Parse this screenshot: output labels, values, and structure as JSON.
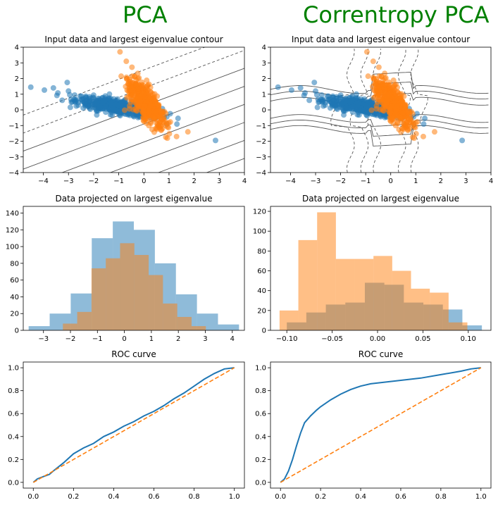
{
  "figure": {
    "column_titles": [
      "PCA",
      "Correntropy PCA"
    ]
  },
  "colors": {
    "blue": "#1f77b4",
    "orange": "#ff7f0e",
    "hist_blue": "#1f77b4",
    "hist_orange": "#ff7f0e",
    "title_green": "#008000",
    "contour": "#555555"
  },
  "chart_data": [
    {
      "panel": "pca-scatter",
      "type": "scatter",
      "title": "Input data and largest eigenvalue contour",
      "xlim": [
        -4.8,
        4
      ],
      "ylim": [
        -4,
        4
      ],
      "xticks": [
        -4,
        -3,
        -2,
        -1,
        0,
        1,
        2,
        3,
        4
      ],
      "yticks": [
        -4,
        -3,
        -2,
        -1,
        0,
        1,
        2,
        3,
        4
      ],
      "series": [
        {
          "color": "blue",
          "description": "elongated cluster along x",
          "center": [
            -1.0,
            0.2
          ],
          "outliers": [
            [
              -4.5,
              1.45
            ],
            [
              -3.6,
              1.4
            ],
            [
              -3.05,
              1.75
            ],
            [
              2.85,
              -1.95
            ]
          ]
        },
        {
          "color": "orange",
          "description": "elongated cluster along y",
          "center": [
            0.1,
            0.4
          ],
          "outliers": [
            [
              -0.95,
              3.7
            ],
            [
              1.75,
              -1.4
            ],
            [
              1.3,
              -1.7
            ]
          ]
        }
      ],
      "contour_style": "parallel lines, slope ~0.6"
    },
    {
      "panel": "cpca-scatter",
      "type": "scatter",
      "title": "Input data and largest eigenvalue contour",
      "xlim": [
        -4.8,
        4
      ],
      "ylim": [
        -4,
        4
      ],
      "xticks": [
        -4,
        -3,
        -2,
        -1,
        0,
        1,
        2,
        3,
        4
      ],
      "yticks": [
        -4,
        -3,
        -2,
        -1,
        0,
        1,
        2,
        3,
        4
      ],
      "contour_style": "curved level sets around the data"
    },
    {
      "panel": "pca-hist",
      "type": "bar",
      "title": "Data projected on largest eigenvalue",
      "xlim": [
        -3.75,
        4.45
      ],
      "ylim": [
        0,
        148
      ],
      "xticks": [
        -3,
        -2,
        -1,
        0,
        1,
        2,
        3,
        4
      ],
      "yticks": [
        0,
        20,
        40,
        60,
        80,
        100,
        120,
        140
      ],
      "series": [
        {
          "color": "blue",
          "edges": [
            -3.55,
            -2.77,
            -1.99,
            -1.21,
            -0.43,
            0.35,
            1.13,
            1.91,
            2.69,
            3.47,
            4.25
          ],
          "values": [
            5,
            20,
            44,
            110,
            130,
            120,
            80,
            43,
            20,
            7
          ]
        },
        {
          "color": "orange",
          "edges": [
            -2.28,
            -1.75,
            -1.22,
            -0.69,
            -0.16,
            0.37,
            0.9,
            1.43,
            1.96,
            2.49,
            3.02
          ],
          "values": [
            8,
            22,
            74,
            86,
            104,
            90,
            66,
            32,
            16,
            5
          ]
        }
      ]
    },
    {
      "panel": "cpca-hist",
      "type": "bar",
      "title": "Data projected on largest eigenvalue",
      "xlim": [
        -0.118,
        0.125
      ],
      "ylim": [
        0,
        125
      ],
      "xticks": [
        -0.1,
        -0.05,
        0.0,
        0.05,
        0.1
      ],
      "xtick_labels": [
        "−0.10",
        "−0.05",
        "0.00",
        "0.05",
        "0.10"
      ],
      "yticks": [
        0,
        20,
        40,
        60,
        80,
        100,
        120
      ],
      "series": [
        {
          "color": "blue",
          "edges": [
            -0.1,
            -0.0785,
            -0.057,
            -0.0355,
            -0.014,
            0.0075,
            0.029,
            0.0505,
            0.072,
            0.0935,
            0.115
          ],
          "values": [
            8,
            18,
            26,
            28,
            48,
            46,
            28,
            26,
            21,
            5
          ]
        },
        {
          "color": "orange",
          "edges": [
            -0.108,
            -0.0873,
            -0.0666,
            -0.0459,
            -0.0252,
            -0.0045,
            0.0162,
            0.0369,
            0.0576,
            0.0783,
            0.099
          ],
          "values": [
            20,
            91,
            119,
            72,
            72,
            75,
            60,
            42,
            38,
            8
          ]
        }
      ]
    },
    {
      "panel": "pca-roc",
      "type": "line",
      "title": "ROC curve",
      "xlim": [
        -0.05,
        1.05
      ],
      "ylim": [
        -0.05,
        1.05
      ],
      "xticks": [
        0.0,
        0.2,
        0.4,
        0.6,
        0.8,
        1.0
      ],
      "yticks": [
        0.0,
        0.2,
        0.4,
        0.6,
        0.8,
        1.0
      ],
      "series": [
        {
          "color": "blue",
          "style": "solid",
          "x": [
            0,
            0.02,
            0.05,
            0.08,
            0.1,
            0.15,
            0.2,
            0.25,
            0.3,
            0.35,
            0.4,
            0.45,
            0.5,
            0.55,
            0.6,
            0.65,
            0.7,
            0.75,
            0.8,
            0.85,
            0.9,
            0.95,
            1.0
          ],
          "y": [
            0,
            0.03,
            0.05,
            0.07,
            0.1,
            0.17,
            0.25,
            0.3,
            0.34,
            0.4,
            0.44,
            0.49,
            0.53,
            0.58,
            0.62,
            0.67,
            0.73,
            0.78,
            0.84,
            0.9,
            0.95,
            0.99,
            1.0
          ]
        },
        {
          "color": "orange",
          "style": "dashed",
          "x": [
            0,
            1
          ],
          "y": [
            0,
            1
          ]
        }
      ]
    },
    {
      "panel": "cpca-roc",
      "type": "line",
      "title": "ROC curve",
      "xlim": [
        -0.05,
        1.05
      ],
      "ylim": [
        -0.05,
        1.05
      ],
      "xticks": [
        0.0,
        0.2,
        0.4,
        0.6,
        0.8,
        1.0
      ],
      "yticks": [
        0.0,
        0.2,
        0.4,
        0.6,
        0.8,
        1.0
      ],
      "series": [
        {
          "color": "blue",
          "style": "solid",
          "x": [
            0,
            0.02,
            0.04,
            0.06,
            0.08,
            0.1,
            0.12,
            0.15,
            0.18,
            0.2,
            0.25,
            0.3,
            0.35,
            0.4,
            0.45,
            0.5,
            0.6,
            0.7,
            0.8,
            0.9,
            0.95,
            1.0
          ],
          "y": [
            0,
            0.03,
            0.1,
            0.2,
            0.32,
            0.43,
            0.52,
            0.58,
            0.63,
            0.66,
            0.72,
            0.77,
            0.81,
            0.84,
            0.86,
            0.87,
            0.89,
            0.91,
            0.94,
            0.97,
            0.99,
            1.0
          ]
        },
        {
          "color": "orange",
          "style": "dashed",
          "x": [
            0,
            1
          ],
          "y": [
            0,
            1
          ]
        }
      ]
    }
  ]
}
